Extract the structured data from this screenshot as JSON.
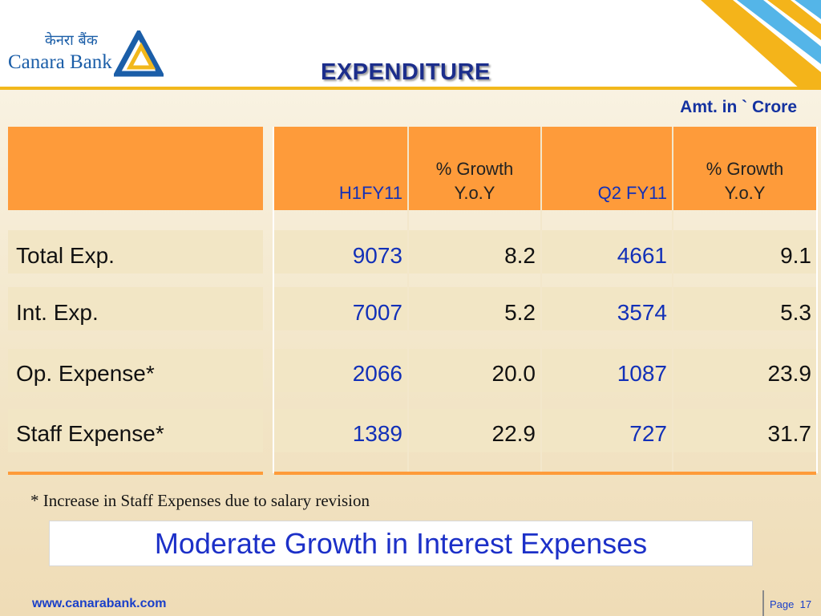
{
  "brand": {
    "name_hindi": "केनरा बैंक",
    "name_english": "Canara Bank"
  },
  "slide": {
    "title": "EXPENDITURE",
    "unit": "Amt. in ` Crore",
    "footnote": "* Increase in Staff Expenses due to salary revision",
    "headline": "Moderate Growth in Interest Expenses"
  },
  "table": {
    "headers": {
      "col1": "H1FY11",
      "col2_line1": "% Growth",
      "col2_line2": "Y.o.Y",
      "col3": "Q2 FY11",
      "col4_line1": "% Growth",
      "col4_line2": "Y.o.Y"
    },
    "rows": [
      {
        "label": "Total Exp.",
        "h1fy11": "9073",
        "growth1": "8.2",
        "q2fy11": "4661",
        "growth2": "9.1"
      },
      {
        "label": "Int. Exp.",
        "h1fy11": "7007",
        "growth1": "5.2",
        "q2fy11": "3574",
        "growth2": "5.3"
      },
      {
        "label": "Op. Expense*",
        "h1fy11": "2066",
        "growth1": "20.0",
        "q2fy11": "1087",
        "growth2": "23.9"
      },
      {
        "label": "Staff Expense*",
        "h1fy11": "1389",
        "growth1": "22.9",
        "q2fy11": "727",
        "growth2": "31.7"
      }
    ]
  },
  "footer": {
    "url": "www.canarabank.com",
    "page_label": "Page",
    "page_number": "17"
  },
  "colors": {
    "header_orange": "#fe9b3a",
    "text_blue": "#1230b8",
    "brand_blue": "#1b5ea8",
    "accent_gold": "#f2b81c"
  }
}
